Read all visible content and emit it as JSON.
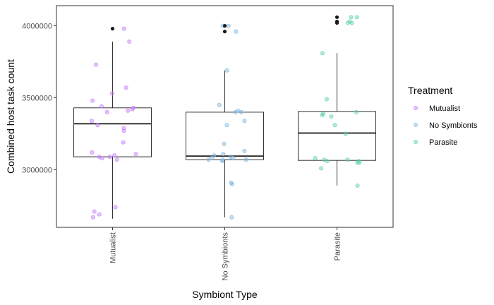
{
  "chart_data": {
    "type": "boxplot",
    "title": "",
    "xlabel": "Symbiont Type",
    "ylabel": "Combined host task count",
    "ylim": [
      2600000,
      4140000
    ],
    "yticks": [
      3000000,
      3500000,
      4000000
    ],
    "ytick_labels": [
      "3000000",
      "3500000",
      "4000000"
    ],
    "grid": false,
    "categories": [
      "Mutualist",
      "No Symbionts",
      "Parasite"
    ],
    "legend": {
      "title": "Treatment",
      "placement": "right",
      "entries": [
        "Mutualist",
        "No Symbionts",
        "Parasite"
      ]
    },
    "colors": {
      "Mutualist": "#c77cff",
      "No Symbionts": "#7fb8e0",
      "Parasite": "#5ed3a4",
      "outlier": "#1a1a1a",
      "box": "#333333"
    },
    "boxes": [
      {
        "category": "Mutualist",
        "min": 2660000,
        "q1": 3090000,
        "median": 3320000,
        "q3": 3430000,
        "max": 3890000,
        "outliers": [
          3980000
        ],
        "points": [
          3980000,
          3890000,
          3730000,
          3570000,
          3530000,
          3480000,
          3440000,
          3430000,
          3420000,
          3410000,
          3400000,
          3340000,
          3310000,
          3290000,
          3270000,
          3190000,
          3120000,
          3110000,
          3100000,
          3090000,
          3090000,
          3080000,
          3070000,
          2740000,
          2710000,
          2690000,
          2670000
        ]
      },
      {
        "category": "No Symbionts",
        "min": 2670000,
        "q1": 3070000,
        "median": 3095000,
        "q3": 3400000,
        "max": 3690000,
        "outliers": [
          4000000,
          3960000
        ],
        "points": [
          4000000,
          4000000,
          3960000,
          3690000,
          3450000,
          3410000,
          3400000,
          3400000,
          3340000,
          3310000,
          3180000,
          3130000,
          3110000,
          3100000,
          3090000,
          3080000,
          3080000,
          3070000,
          3070000,
          3070000,
          3060000,
          2910000,
          2900000,
          2670000
        ]
      },
      {
        "category": "Parasite",
        "min": 2890000,
        "q1": 3065000,
        "median": 3255000,
        "q3": 3405000,
        "max": 3810000,
        "outliers": [
          4060000,
          4030000,
          4020000
        ],
        "points": [
          4060000,
          4060000,
          4030000,
          4020000,
          4020000,
          3810000,
          3490000,
          3400000,
          3390000,
          3380000,
          3370000,
          3310000,
          3250000,
          3080000,
          3070000,
          3070000,
          3060000,
          3060000,
          3050000,
          3050000,
          3010000,
          2890000
        ]
      }
    ]
  }
}
